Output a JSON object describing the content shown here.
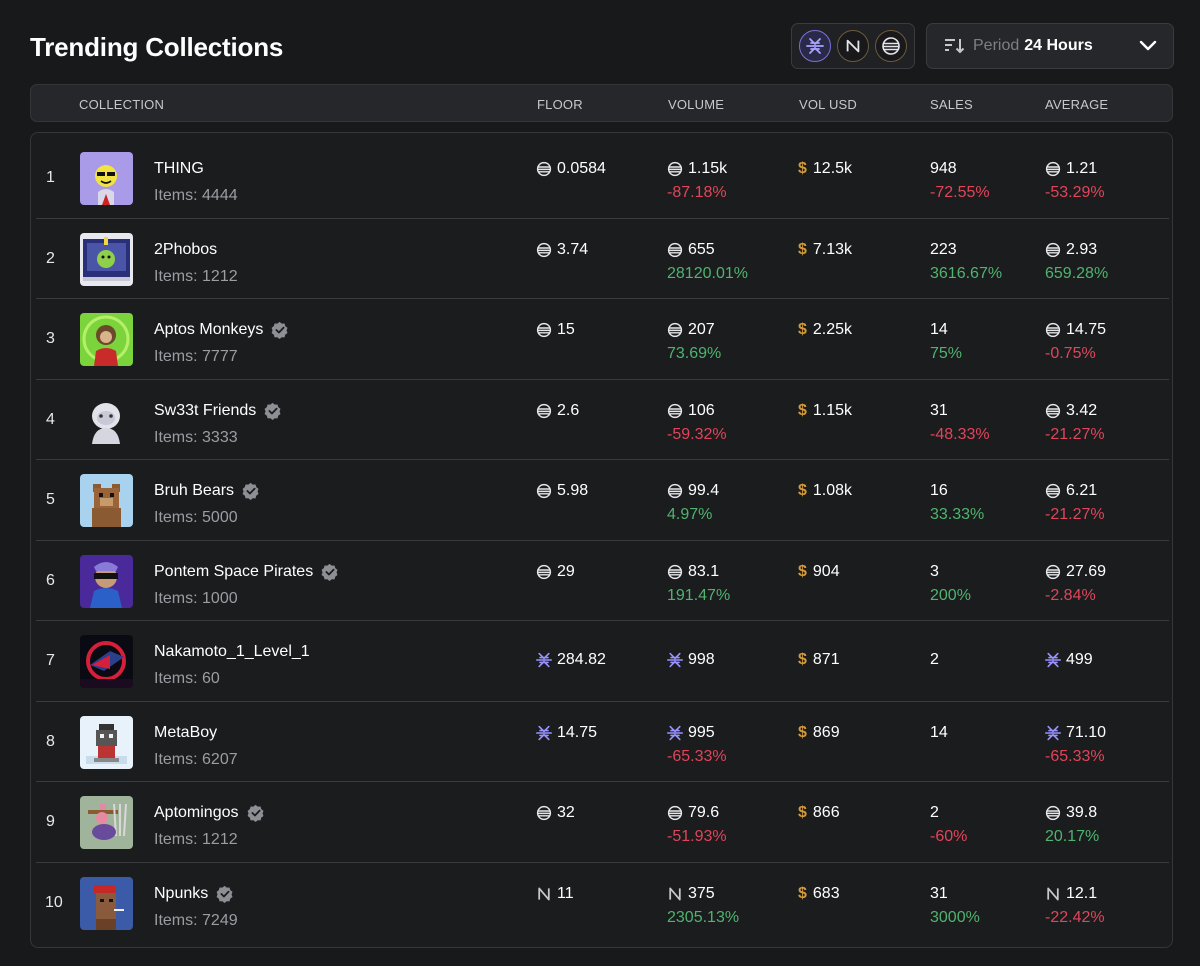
{
  "page": {
    "title": "Trending Collections"
  },
  "chains": [
    {
      "name": "stargaze",
      "icon": "stargaze-icon",
      "selected": true
    },
    {
      "name": "near",
      "icon": "near-icon",
      "selected": false
    },
    {
      "name": "aptos",
      "icon": "aptos-icon",
      "selected": false
    }
  ],
  "period": {
    "label": "Period",
    "value": "24 Hours"
  },
  "columns": {
    "collection": "COLLECTION",
    "floor": "FLOOR",
    "volume": "VOLUME",
    "vol_usd": "VOL USD",
    "sales": "SALES",
    "average": "AVERAGE"
  },
  "labels": {
    "items_prefix": "Items: ",
    "usd_symbol": "$"
  },
  "colors": {
    "positive": "#4fb46e",
    "negative": "#e0455a",
    "usd": "#d29a3a",
    "accent": "#7a72d8"
  },
  "rows": [
    {
      "rank": "1",
      "name": "THING",
      "verified": false,
      "items": "4444",
      "chain": "aptos",
      "floor": "0.0584",
      "volume": "1.15k",
      "volume_change": "-87.18%",
      "vol_usd": "12.5k",
      "sales": "948",
      "sales_change": "-72.55%",
      "average": "1.21",
      "average_change": "-53.29%"
    },
    {
      "rank": "2",
      "name": "2Phobos",
      "verified": false,
      "items": "1212",
      "chain": "aptos",
      "floor": "3.74",
      "volume": "655",
      "volume_change": "28120.01%",
      "vol_usd": "7.13k",
      "sales": "223",
      "sales_change": "3616.67%",
      "average": "2.93",
      "average_change": "659.28%"
    },
    {
      "rank": "3",
      "name": "Aptos Monkeys",
      "verified": true,
      "items": "7777",
      "chain": "aptos",
      "floor": "15",
      "volume": "207",
      "volume_change": "73.69%",
      "vol_usd": "2.25k",
      "sales": "14",
      "sales_change": "75%",
      "average": "14.75",
      "average_change": "-0.75%"
    },
    {
      "rank": "4",
      "name": "Sw33t Friends",
      "verified": true,
      "items": "3333",
      "chain": "aptos",
      "floor": "2.6",
      "volume": "106",
      "volume_change": "-59.32%",
      "vol_usd": "1.15k",
      "sales": "31",
      "sales_change": "-48.33%",
      "average": "3.42",
      "average_change": "-21.27%"
    },
    {
      "rank": "5",
      "name": "Bruh Bears",
      "verified": true,
      "items": "5000",
      "chain": "aptos",
      "floor": "5.98",
      "volume": "99.4",
      "volume_change": "4.97%",
      "vol_usd": "1.08k",
      "sales": "16",
      "sales_change": "33.33%",
      "average": "6.21",
      "average_change": "-21.27%"
    },
    {
      "rank": "6",
      "name": "Pontem Space Pirates",
      "verified": true,
      "items": "1000",
      "chain": "aptos",
      "floor": "29",
      "volume": "83.1",
      "volume_change": "191.47%",
      "vol_usd": "904",
      "sales": "3",
      "sales_change": "200%",
      "average": "27.69",
      "average_change": "-2.84%"
    },
    {
      "rank": "7",
      "name": "Nakamoto_1_Level_1",
      "verified": false,
      "items": "60",
      "chain": "stargaze",
      "floor": "284.82",
      "volume": "998",
      "volume_change": "",
      "vol_usd": "871",
      "sales": "2",
      "sales_change": "",
      "average": "499",
      "average_change": ""
    },
    {
      "rank": "8",
      "name": "MetaBoy",
      "verified": false,
      "items": "6207",
      "chain": "stargaze",
      "floor": "14.75",
      "volume": "995",
      "volume_change": "-65.33%",
      "vol_usd": "869",
      "sales": "14",
      "sales_change": "",
      "average": "71.10",
      "average_change": "-65.33%"
    },
    {
      "rank": "9",
      "name": "Aptomingos",
      "verified": true,
      "items": "1212",
      "chain": "aptos",
      "floor": "32",
      "volume": "79.6",
      "volume_change": "-51.93%",
      "vol_usd": "866",
      "sales": "2",
      "sales_change": "-60%",
      "average": "39.8",
      "average_change": "20.17%"
    },
    {
      "rank": "10",
      "name": "Npunks",
      "verified": true,
      "items": "7249",
      "chain": "near",
      "floor": "11",
      "volume": "375",
      "volume_change": "2305.13%",
      "vol_usd": "683",
      "sales": "31",
      "sales_change": "3000%",
      "average": "12.1",
      "average_change": "-22.42%"
    }
  ]
}
